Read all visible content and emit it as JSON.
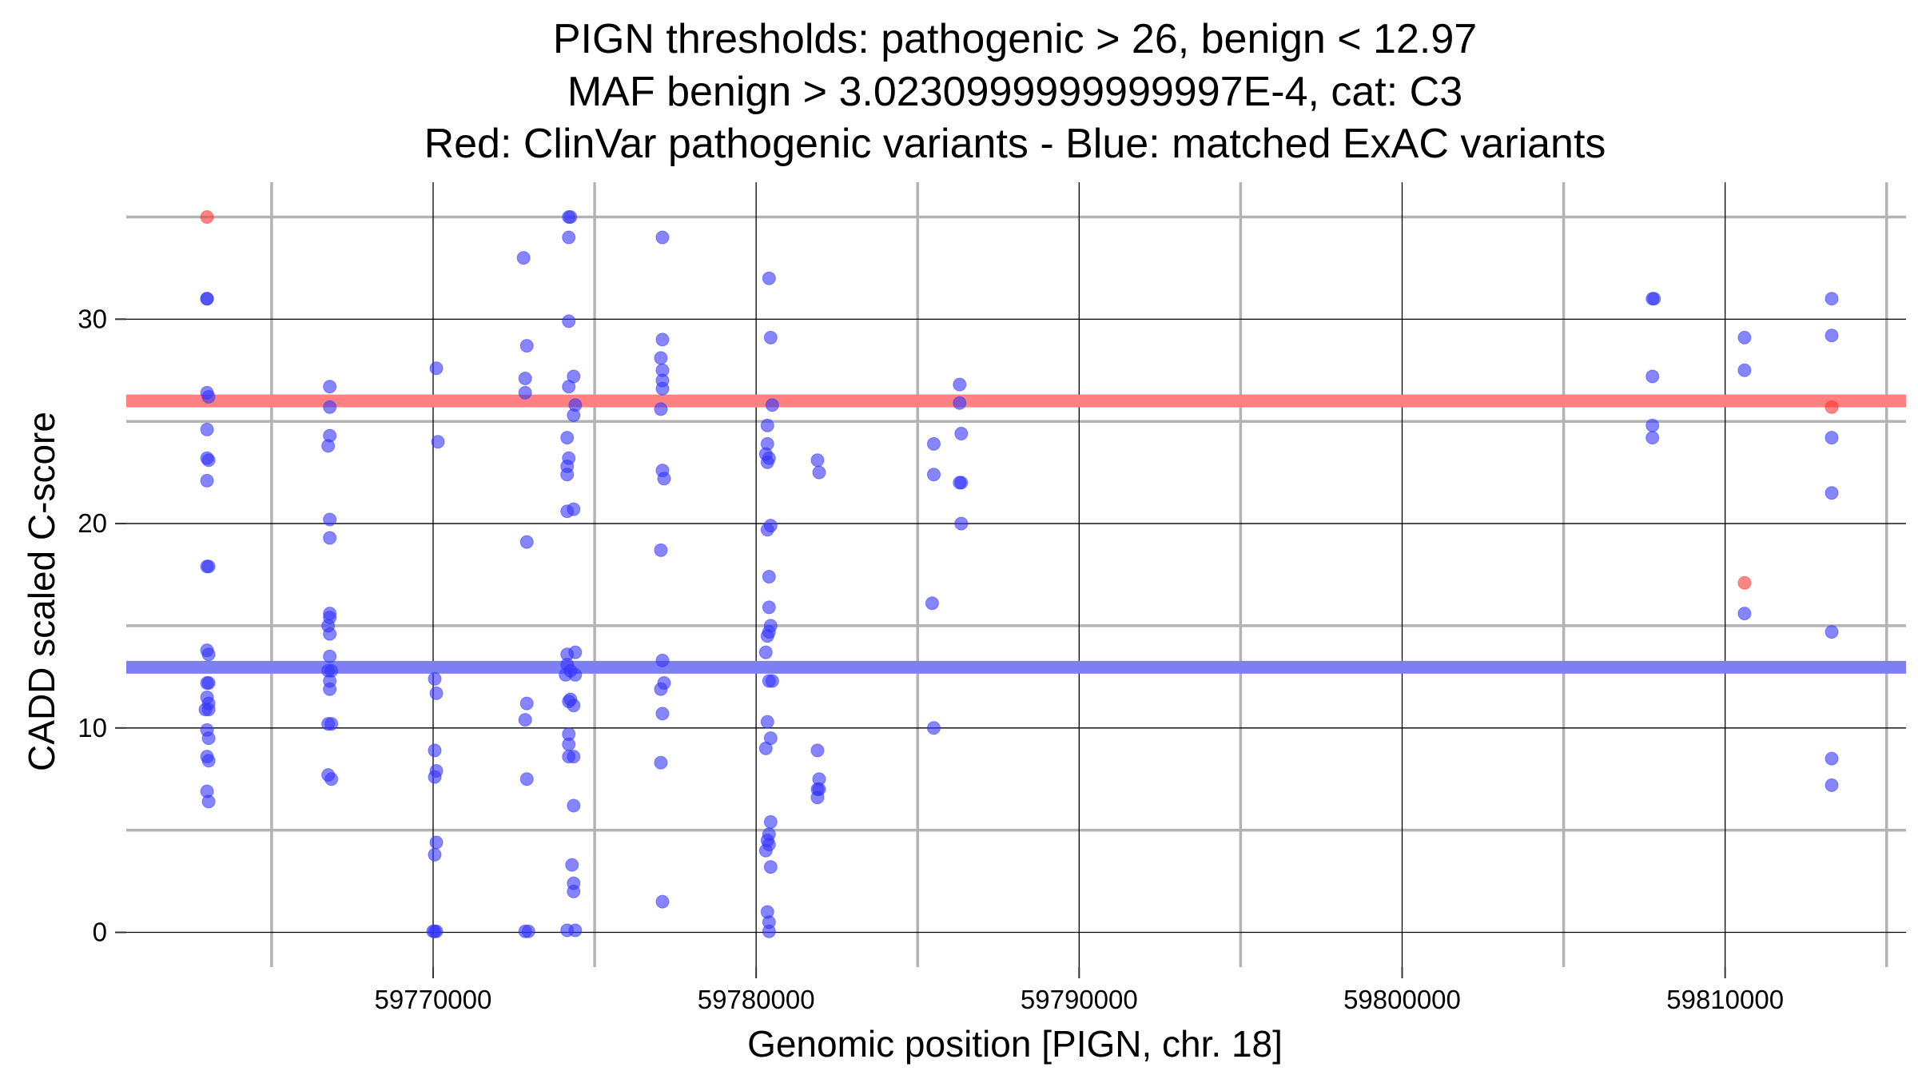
{
  "chart_data": {
    "type": "scatter",
    "title_lines": [
      "PIGN thresholds: pathogenic > 26, benign < 12.97",
      "MAF benign > 3.0230999999999997E-4, cat: C3",
      "Red: ClinVar pathogenic variants - Blue: matched ExAC variants"
    ],
    "xlabel": "Genomic position [PIGN, chr. 18]",
    "ylabel": "CADD scaled C-score",
    "xlim": [
      59760500,
      59815600
    ],
    "ylim": [
      -1.7,
      36.7
    ],
    "x_ticks": [
      59770000,
      59780000,
      59790000,
      59800000,
      59810000
    ],
    "x_tick_labels": [
      "59770000",
      "59780000",
      "59790000",
      "59800000",
      "59810000"
    ],
    "x_minor_gridlines": [
      59765000,
      59775000,
      59785000,
      59795000,
      59805000,
      59815000
    ],
    "y_ticks": [
      0,
      10,
      20,
      30
    ],
    "y_tick_labels": [
      "0",
      "10",
      "20",
      "30"
    ],
    "y_minor_gridlines": [
      5,
      15,
      25,
      35
    ],
    "thresholds": [
      {
        "name": "pathogenic",
        "value": 26,
        "color": "#ff8080"
      },
      {
        "name": "benign",
        "value": 12.97,
        "color": "#7f7ff5"
      }
    ],
    "colors": {
      "pathogenic": "#ff3333",
      "benign": "#3333ff",
      "grid_major": "#000000",
      "grid_minor": "#b3b3b3"
    },
    "series": [
      {
        "name": "ClinVar pathogenic variants",
        "color": "#ff3333",
        "points": [
          [
            59763000,
            35
          ],
          [
            59810600,
            17.1
          ],
          [
            59813300,
            25.7
          ]
        ]
      },
      {
        "name": "matched ExAC variants",
        "color": "#3333ff",
        "points": [
          [
            59763000,
            31
          ],
          [
            59763000,
            31
          ],
          [
            59763000,
            26.4
          ],
          [
            59763050,
            26.2
          ],
          [
            59763000,
            24.6
          ],
          [
            59763000,
            23.2
          ],
          [
            59763050,
            23.1
          ],
          [
            59763000,
            22.1
          ],
          [
            59763000,
            17.9
          ],
          [
            59763050,
            17.9
          ],
          [
            59763000,
            13.8
          ],
          [
            59763050,
            13.6
          ],
          [
            59763000,
            12.2
          ],
          [
            59763050,
            12.2
          ],
          [
            59763000,
            11.5
          ],
          [
            59763050,
            11.2
          ],
          [
            59762950,
            10.9
          ],
          [
            59763050,
            10.9
          ],
          [
            59763000,
            9.9
          ],
          [
            59763050,
            9.5
          ],
          [
            59763000,
            8.6
          ],
          [
            59763050,
            8.4
          ],
          [
            59763000,
            6.9
          ],
          [
            59763050,
            6.4
          ],
          [
            59766800,
            26.7
          ],
          [
            59766800,
            25.7
          ],
          [
            59766800,
            24.3
          ],
          [
            59766750,
            23.8
          ],
          [
            59766800,
            20.2
          ],
          [
            59766800,
            19.3
          ],
          [
            59766800,
            15.6
          ],
          [
            59766800,
            15.4
          ],
          [
            59766750,
            15.0
          ],
          [
            59766800,
            14.6
          ],
          [
            59766800,
            13.5
          ],
          [
            59766750,
            12.8
          ],
          [
            59766850,
            12.8
          ],
          [
            59766800,
            12.3
          ],
          [
            59766800,
            11.9
          ],
          [
            59766750,
            10.2
          ],
          [
            59766850,
            10.2
          ],
          [
            59766750,
            7.7
          ],
          [
            59766850,
            7.5
          ],
          [
            59770100,
            27.6
          ],
          [
            59770150,
            24.0
          ],
          [
            59770050,
            12.4
          ],
          [
            59770100,
            11.7
          ],
          [
            59770050,
            8.9
          ],
          [
            59770100,
            7.9
          ],
          [
            59770050,
            7.6
          ],
          [
            59770100,
            4.4
          ],
          [
            59770050,
            3.8
          ],
          [
            59770000,
            0.05
          ],
          [
            59770100,
            0.05
          ],
          [
            59770050,
            0.05
          ],
          [
            59772800,
            33.0
          ],
          [
            59772900,
            28.7
          ],
          [
            59772850,
            27.1
          ],
          [
            59772850,
            26.4
          ],
          [
            59772900,
            19.1
          ],
          [
            59772900,
            11.2
          ],
          [
            59772850,
            10.4
          ],
          [
            59772900,
            7.5
          ],
          [
            59772850,
            0.05
          ],
          [
            59772950,
            0.05
          ],
          [
            59774200,
            35
          ],
          [
            59774250,
            35
          ],
          [
            59774200,
            34.0
          ],
          [
            59774200,
            29.9
          ],
          [
            59774350,
            27.2
          ],
          [
            59774200,
            26.7
          ],
          [
            59774400,
            25.8
          ],
          [
            59774350,
            25.3
          ],
          [
            59774150,
            24.2
          ],
          [
            59774200,
            23.2
          ],
          [
            59774150,
            22.8
          ],
          [
            59774150,
            22.4
          ],
          [
            59774350,
            20.7
          ],
          [
            59774150,
            20.6
          ],
          [
            59774150,
            13.6
          ],
          [
            59774400,
            13.7
          ],
          [
            59774150,
            13.1
          ],
          [
            59774250,
            12.8
          ],
          [
            59774100,
            12.6
          ],
          [
            59774400,
            12.6
          ],
          [
            59774250,
            11.4
          ],
          [
            59774200,
            11.3
          ],
          [
            59774350,
            11.1
          ],
          [
            59774200,
            9.7
          ],
          [
            59774200,
            9.2
          ],
          [
            59774200,
            8.6
          ],
          [
            59774350,
            8.6
          ],
          [
            59774350,
            6.2
          ],
          [
            59774300,
            3.3
          ],
          [
            59774350,
            2.4
          ],
          [
            59774350,
            2.0
          ],
          [
            59774150,
            0.1
          ],
          [
            59774400,
            0.1
          ],
          [
            59777100,
            34.0
          ],
          [
            59777100,
            29.0
          ],
          [
            59777050,
            28.1
          ],
          [
            59777100,
            27.5
          ],
          [
            59777100,
            27.0
          ],
          [
            59777100,
            26.6
          ],
          [
            59777050,
            25.6
          ],
          [
            59777100,
            22.6
          ],
          [
            59777150,
            22.2
          ],
          [
            59777050,
            18.7
          ],
          [
            59777100,
            13.3
          ],
          [
            59777150,
            12.2
          ],
          [
            59777050,
            11.9
          ],
          [
            59777100,
            10.7
          ],
          [
            59777050,
            8.3
          ],
          [
            59777100,
            1.5
          ],
          [
            59780400,
            32.0
          ],
          [
            59780450,
            29.1
          ],
          [
            59780500,
            25.8
          ],
          [
            59780350,
            24.8
          ],
          [
            59780350,
            23.9
          ],
          [
            59780300,
            23.4
          ],
          [
            59780400,
            23.2
          ],
          [
            59780350,
            23.0
          ],
          [
            59780450,
            19.9
          ],
          [
            59780350,
            19.7
          ],
          [
            59780400,
            17.4
          ],
          [
            59780400,
            15.9
          ],
          [
            59780450,
            15.0
          ],
          [
            59780400,
            14.7
          ],
          [
            59780350,
            14.5
          ],
          [
            59780300,
            13.7
          ],
          [
            59780400,
            12.3
          ],
          [
            59780500,
            12.3
          ],
          [
            59780350,
            10.3
          ],
          [
            59780450,
            9.5
          ],
          [
            59780300,
            9.0
          ],
          [
            59780450,
            5.4
          ],
          [
            59780400,
            4.8
          ],
          [
            59780350,
            4.5
          ],
          [
            59780400,
            4.3
          ],
          [
            59780300,
            4.0
          ],
          [
            59780450,
            3.2
          ],
          [
            59780350,
            1.0
          ],
          [
            59780400,
            0.5
          ],
          [
            59780400,
            0.05
          ],
          [
            59781900,
            23.1
          ],
          [
            59781950,
            22.5
          ],
          [
            59781900,
            8.9
          ],
          [
            59781950,
            7.5
          ],
          [
            59781900,
            7.0
          ],
          [
            59781950,
            7.0
          ],
          [
            59781900,
            6.6
          ],
          [
            59785500,
            23.9
          ],
          [
            59785500,
            22.4
          ],
          [
            59785450,
            16.1
          ],
          [
            59785500,
            10.0
          ],
          [
            59786300,
            26.8
          ],
          [
            59786300,
            25.9
          ],
          [
            59786350,
            24.4
          ],
          [
            59786300,
            22.0
          ],
          [
            59786350,
            22.0
          ],
          [
            59786350,
            20.0
          ],
          [
            59807750,
            31.0
          ],
          [
            59807800,
            31.0
          ],
          [
            59807750,
            27.2
          ],
          [
            59807750,
            24.8
          ],
          [
            59807750,
            24.2
          ],
          [
            59810600,
            29.1
          ],
          [
            59810600,
            27.5
          ],
          [
            59810600,
            15.6
          ],
          [
            59813300,
            31.0
          ],
          [
            59813300,
            29.2
          ],
          [
            59813300,
            24.2
          ],
          [
            59813300,
            21.5
          ],
          [
            59813300,
            14.7
          ],
          [
            59813300,
            8.5
          ],
          [
            59813300,
            7.2
          ]
        ]
      }
    ]
  }
}
